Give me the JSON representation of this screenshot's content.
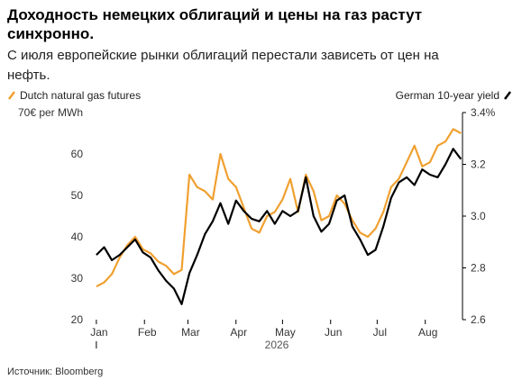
{
  "chart_data": {
    "type": "line",
    "title": "Доходность немецких облигаций и цены на газ растут синхронно.",
    "subtitle": "С июля европейские рынки облигаций перестали зависеть от цен на нефть.",
    "source": "Источник: Bloomberg",
    "xlabel": "2026",
    "x": [
      0,
      5,
      10,
      15,
      20,
      25,
      30,
      35,
      40,
      45,
      50,
      55,
      60,
      65,
      70,
      75,
      80,
      85,
      90,
      95,
      100,
      105,
      110,
      115,
      120,
      125,
      130,
      135,
      140,
      145,
      150,
      155,
      160,
      165,
      170,
      175,
      180,
      185,
      190,
      195,
      200,
      205,
      210,
      215,
      220,
      225,
      230,
      235
    ],
    "xlim": [
      -4,
      236
    ],
    "xticks": [
      {
        "value": 0,
        "label": "Jan"
      },
      {
        "value": 31,
        "label": "Feb"
      },
      {
        "value": 59,
        "label": "Mar"
      },
      {
        "value": 90,
        "label": "Apr"
      },
      {
        "value": 120,
        "label": "May"
      },
      {
        "value": 151,
        "label": "Jun"
      },
      {
        "value": 181,
        "label": "Jul"
      },
      {
        "value": 212,
        "label": "Aug"
      }
    ],
    "ylim": [
      20,
      70
    ],
    "yticks": [
      20,
      30,
      40,
      50,
      60,
      {
        "value": 70,
        "label": "70€ per MWh"
      }
    ],
    "y2lim": [
      2.6,
      3.4
    ],
    "y2ticks": [
      2.6,
      2.8,
      {
        "value": 3,
        "label": "3.0"
      },
      3.2,
      {
        "value": 3.4,
        "label": "3.4%"
      }
    ],
    "series": [
      {
        "name": "Dutch natural gas futures",
        "color": "#f0a030",
        "values": [
          28,
          29,
          31,
          35,
          38,
          40,
          37,
          36,
          34,
          33,
          31,
          32,
          55,
          52,
          51,
          49,
          60,
          54,
          52,
          47,
          42,
          41,
          45,
          46,
          49,
          54,
          46,
          55,
          51,
          44,
          45,
          50,
          48,
          44,
          41,
          40,
          42,
          46,
          52,
          54,
          58,
          62,
          57,
          58,
          62,
          63,
          66,
          65
        ]
      },
      {
        "name": "German 10-year yield",
        "color": "#000000",
        "axis": "y2",
        "values": [
          2.85,
          2.88,
          2.83,
          2.85,
          2.88,
          2.91,
          2.86,
          2.84,
          2.79,
          2.75,
          2.72,
          2.66,
          2.78,
          2.85,
          2.93,
          2.98,
          3.05,
          2.97,
          3.06,
          3.02,
          2.99,
          2.98,
          3.02,
          2.97,
          3.02,
          3.0,
          3.02,
          3.15,
          3.0,
          2.94,
          2.97,
          3.06,
          3.08,
          2.96,
          2.91,
          2.85,
          2.87,
          2.96,
          3.07,
          3.13,
          3.15,
          3.12,
          3.18,
          3.16,
          3.15,
          3.2,
          3.26,
          3.22
        ]
      }
    ]
  }
}
